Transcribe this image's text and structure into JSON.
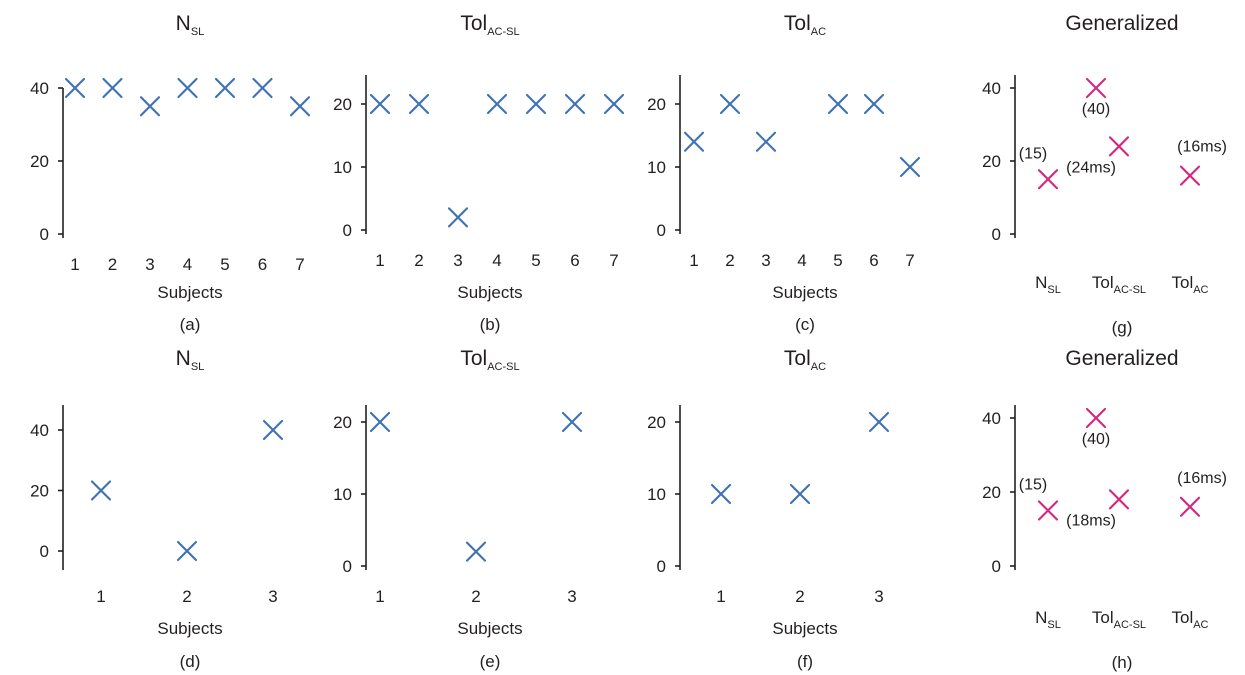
{
  "colors": {
    "subject_marker": "#3f72b3",
    "generalized_marker": "#d5257f",
    "axis": "#231f20"
  },
  "chart_data": [
    {
      "type": "scatter",
      "panel": "a",
      "title": {
        "main": "N",
        "sub": "SL"
      },
      "xlabel": "Subjects",
      "caption": "(a)",
      "x": [
        1,
        2,
        3,
        4,
        5,
        6,
        7
      ],
      "xticks": [
        "1",
        "2",
        "3",
        "4",
        "5",
        "6",
        "7"
      ],
      "y": [
        40,
        40,
        35,
        40,
        40,
        40,
        35
      ],
      "yticks": [
        0,
        20,
        40
      ],
      "ylim": [
        0,
        45
      ]
    },
    {
      "type": "scatter",
      "panel": "b",
      "title": {
        "main": "Tol",
        "sub": "AC-SL"
      },
      "xlabel": "Subjects",
      "caption": "(b)",
      "x": [
        1,
        2,
        3,
        4,
        5,
        6,
        7
      ],
      "xticks": [
        "1",
        "2",
        "3",
        "4",
        "5",
        "6",
        "7"
      ],
      "y": [
        20,
        20,
        2,
        20,
        20,
        20,
        20
      ],
      "yticks": [
        0,
        10,
        20
      ],
      "ylim": [
        0,
        24
      ]
    },
    {
      "type": "scatter",
      "panel": "c",
      "title": {
        "main": "Tol",
        "sub": "AC"
      },
      "xlabel": "Subjects",
      "caption": "(c)",
      "x": [
        1,
        2,
        3,
        5,
        6,
        7
      ],
      "xticks": [
        "1",
        "2",
        "3",
        "4",
        "5",
        "6",
        "7"
      ],
      "y": [
        14,
        20,
        14,
        20,
        20,
        10
      ],
      "yticks": [
        0,
        10,
        20
      ],
      "ylim": [
        0,
        24
      ]
    },
    {
      "type": "scatter",
      "panel": "g",
      "generalized": true,
      "title": {
        "main": "Generalized",
        "sub": ""
      },
      "caption": "(g)",
      "xticks": [
        {
          "main": "N",
          "sub": "SL"
        },
        {
          "main": "Tol",
          "sub": "AC-SL"
        },
        {
          "main": "Tol",
          "sub": "AC"
        }
      ],
      "points": [
        {
          "x": 1,
          "y": 40,
          "label": "(40)"
        },
        {
          "x": 1,
          "y": 15,
          "label": "(15)"
        },
        {
          "x": 2,
          "y": 24,
          "label": "(24ms)"
        },
        {
          "x": 3,
          "y": 16,
          "label": "(16ms)"
        }
      ],
      "yticks": [
        0,
        20,
        40
      ],
      "ylim": [
        0,
        45
      ]
    },
    {
      "type": "scatter",
      "panel": "d",
      "title": {
        "main": "N",
        "sub": "SL"
      },
      "xlabel": "Subjects",
      "caption": "(d)",
      "x": [
        1,
        2,
        3
      ],
      "xticks": [
        "1",
        "2",
        "3"
      ],
      "y": [
        20,
        0,
        40
      ],
      "yticks": [
        0,
        20,
        40
      ],
      "ylim": [
        0,
        45
      ]
    },
    {
      "type": "scatter",
      "panel": "e",
      "title": {
        "main": "Tol",
        "sub": "AC-SL"
      },
      "xlabel": "Subjects",
      "caption": "(e)",
      "x": [
        1,
        2,
        3
      ],
      "xticks": [
        "1",
        "2",
        "3"
      ],
      "y": [
        20,
        2,
        20
      ],
      "yticks": [
        0,
        10,
        20
      ],
      "ylim": [
        0,
        23
      ]
    },
    {
      "type": "scatter",
      "panel": "f",
      "title": {
        "main": "Tol",
        "sub": "AC"
      },
      "xlabel": "Subjects",
      "caption": "(f)",
      "x": [
        1,
        2,
        3
      ],
      "xticks": [
        "1",
        "2",
        "3"
      ],
      "y": [
        10,
        10,
        20
      ],
      "yticks": [
        0,
        10,
        20
      ],
      "ylim": [
        0,
        23
      ]
    },
    {
      "type": "scatter",
      "panel": "h",
      "generalized": true,
      "title": {
        "main": "Generalized",
        "sub": ""
      },
      "caption": "(h)",
      "xticks": [
        {
          "main": "N",
          "sub": "SL"
        },
        {
          "main": "Tol",
          "sub": "AC-SL"
        },
        {
          "main": "Tol",
          "sub": "AC"
        }
      ],
      "points": [
        {
          "x": 1,
          "y": 40,
          "label": "(40)"
        },
        {
          "x": 1,
          "y": 15,
          "label": "(15)"
        },
        {
          "x": 2,
          "y": 18,
          "label": "(18ms)"
        },
        {
          "x": 3,
          "y": 16,
          "label": "(16ms)"
        }
      ],
      "yticks": [
        0,
        20,
        40
      ],
      "ylim": [
        0,
        45
      ]
    }
  ]
}
